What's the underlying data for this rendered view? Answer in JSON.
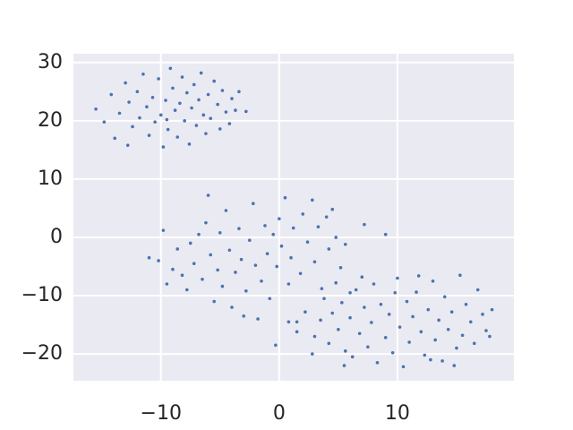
{
  "chart_data": {
    "type": "scatter",
    "color": "#4c72b0",
    "grid": true,
    "xlim": [
      -17.4,
      19.85
    ],
    "ylim": [
      -24.6,
      31.5
    ],
    "xticks": [
      {
        "value": -10,
        "label": "−10"
      },
      0,
      10
    ],
    "yticks": [
      {
        "value": -20,
        "label": "−20"
      },
      {
        "value": -10,
        "label": "−10"
      },
      0,
      10,
      20,
      30
    ],
    "x": [
      -15.5,
      -14.8,
      -14.2,
      -13.9,
      -13.5,
      -13,
      -12.7,
      -12.4,
      -12,
      -11.8,
      -11.5,
      -11.2,
      -11,
      -10.7,
      -10.5,
      -10.2,
      -10,
      -9.8,
      -9.6,
      -9.4,
      -9.2,
      -9,
      -8.8,
      -8.6,
      -8.4,
      -8.2,
      -8,
      -7.8,
      -7.6,
      -7.4,
      -7.2,
      -7,
      -6.8,
      -6.6,
      -6.4,
      -6.2,
      -6,
      -5.8,
      -5.5,
      -5.2,
      -5,
      -4.8,
      -4.5,
      -4.2,
      -4,
      -3.7,
      -3.4,
      -2.8,
      -12.8,
      -9.5,
      -11,
      -10.2,
      -9.8,
      -9.5,
      -9,
      -8.6,
      -8.2,
      -7.8,
      -7.5,
      -7.2,
      -6.8,
      -6.5,
      -6.2,
      -6,
      -5.8,
      -5.5,
      -5.2,
      -5,
      -4.8,
      -4.5,
      -4.2,
      -4,
      -3.7,
      -3.4,
      -3.2,
      -3,
      -2.8,
      -2.5,
      -2.2,
      -2,
      -1.8,
      -1.5,
      -1.2,
      -1,
      -0.8,
      -0.5,
      -0.2,
      0,
      0.2,
      0.5,
      0.8,
      1,
      1.2,
      1.5,
      1.8,
      2,
      2.4,
      2.8,
      3,
      3.3,
      3.6,
      4,
      4.2,
      4.5,
      4.8,
      5.2,
      5.6,
      6,
      7.2,
      9,
      -0.3,
      0.8,
      1.5,
      2.2,
      2.8,
      3,
      3.5,
      3.8,
      4.2,
      4.5,
      5,
      5.3,
      5.6,
      6,
      6.2,
      6.5,
      6.8,
      7.2,
      7.5,
      7.8,
      8,
      8.3,
      8.6,
      9,
      9.3,
      9.6,
      10,
      10.2,
      10.5,
      10.8,
      11,
      11.3,
      11.6,
      12,
      12.3,
      12.6,
      13,
      13.2,
      13.5,
      13.8,
      14,
      14.3,
      14.6,
      15,
      15.3,
      15.5,
      15.8,
      16.2,
      16.5,
      16.8,
      17.2,
      17.5,
      18,
      17.8,
      12.8,
      9.8,
      7,
      11.8,
      14.8,
      5.5,
      4.8
    ],
    "values": [
      22,
      19.8,
      24.5,
      17,
      21.3,
      26.5,
      23.2,
      19,
      25,
      20.5,
      28,
      22.4,
      17.5,
      24,
      19.8,
      27.2,
      21,
      15.5,
      23.5,
      18.5,
      29,
      25.6,
      21.8,
      17.2,
      23,
      27.5,
      20,
      24.8,
      16,
      22.2,
      26.2,
      19.2,
      23.6,
      28.2,
      21,
      17.8,
      24.5,
      20.4,
      26.8,
      22.8,
      18.6,
      25.2,
      21.5,
      19.5,
      23.8,
      21.8,
      25,
      21.6,
      15.8,
      20.2,
      -3.5,
      -4,
      1.2,
      -8,
      -5.5,
      -2,
      -6.5,
      -9,
      -1,
      -4.5,
      0.5,
      -7.2,
      2.5,
      7.2,
      -3,
      -11,
      -5.6,
      0.8,
      -8.4,
      4.6,
      -2.2,
      -12,
      -6,
      1.5,
      -3.8,
      -13.5,
      -9.2,
      -0.5,
      5.8,
      -4.8,
      -14,
      -7.5,
      2,
      -2.8,
      -10.5,
      0.5,
      -5,
      3.2,
      -1.5,
      6.8,
      -8,
      -3.5,
      1.6,
      -14.5,
      -6.2,
      4,
      -0.8,
      6.4,
      -4.2,
      1.8,
      -8.8,
      3.5,
      -2,
      4.8,
      0,
      -5.2,
      -1.2,
      -9.5,
      2.2,
      0.5,
      -18.5,
      -14.5,
      -16.2,
      -12.8,
      -20,
      -17,
      -14.2,
      -10.5,
      -18.2,
      -13,
      -15.8,
      -11.2,
      -19.5,
      -13.8,
      -20.5,
      -9,
      -16.5,
      -12,
      -18.8,
      -14.6,
      -8,
      -21.5,
      -11.5,
      -17.2,
      -13.2,
      -19.8,
      -7,
      -15.4,
      -22.2,
      -11,
      -18,
      -13.6,
      -9.4,
      -16.2,
      -20.2,
      -12.4,
      -7.5,
      -17.6,
      -14.2,
      -21.2,
      -10.2,
      -15.8,
      -12.8,
      -19,
      -6.5,
      -16.8,
      -11.5,
      -14.5,
      -18.2,
      -9,
      -13.2,
      -16,
      -12.4,
      -17,
      -21,
      -9.5,
      -6.8,
      -6.6,
      -22,
      -22,
      -7.8
    ]
  }
}
